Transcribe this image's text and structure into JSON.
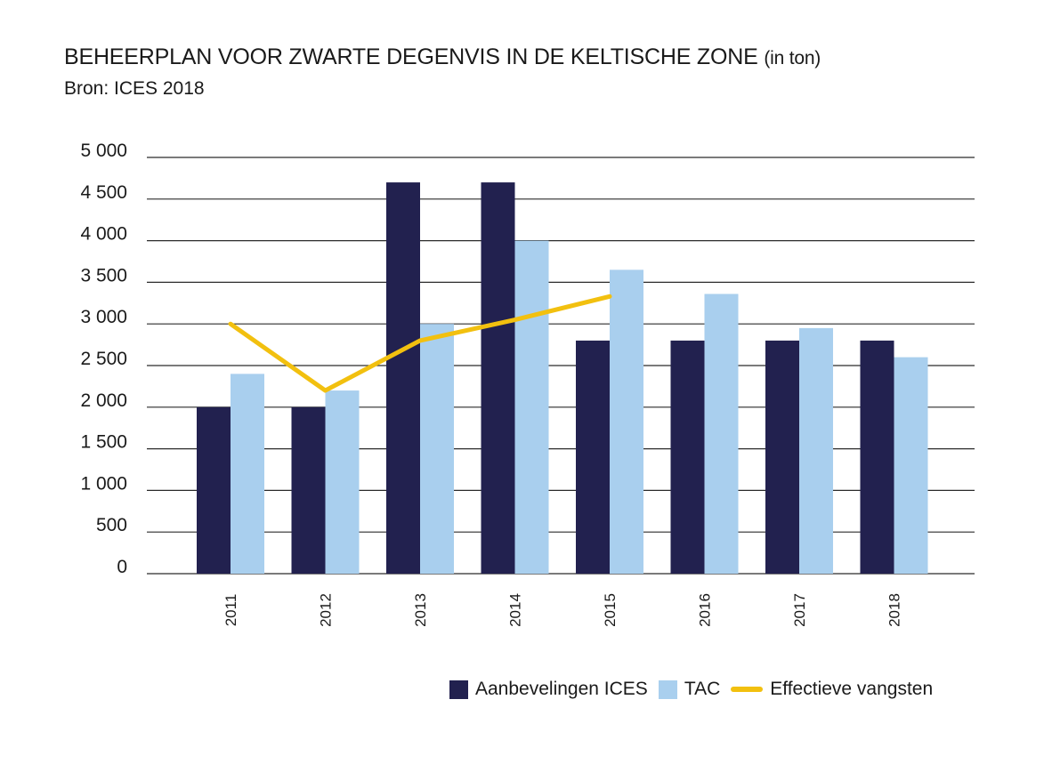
{
  "header": {
    "title": "BEHEERPLAN VOOR ZWARTE DEGENVIS IN DE KELTISCHE ZONE",
    "title_unit": "(in ton)",
    "source": "Bron: ICES 2018"
  },
  "chart_data": {
    "type": "bar",
    "title": "BEHEERPLAN VOOR ZWARTE DEGENVIS IN DE KELTISCHE ZONE (in ton)",
    "subtitle": "Bron: ICES 2018",
    "xlabel": "",
    "ylabel": "",
    "categories": [
      "2011",
      "2012",
      "2013",
      "2014",
      "2015",
      "2016",
      "2017",
      "2018"
    ],
    "ylim": [
      0,
      5000
    ],
    "yticks": [
      0,
      500,
      1000,
      1500,
      2000,
      2500,
      3000,
      3500,
      4000,
      4500,
      5000
    ],
    "ytick_labels": [
      "0",
      "500",
      "1 000",
      "1 500",
      "2 000",
      "2 500",
      "3 000",
      "3 500",
      "4 000",
      "4 500",
      "5 000"
    ],
    "grid": "horizontal",
    "legend_position": "bottom-right",
    "series": [
      {
        "name": "Aanbevelingen ICES",
        "type": "bar",
        "color": "#22214f",
        "values": [
          2000,
          2000,
          4700,
          4700,
          2800,
          2800,
          2800,
          2800
        ]
      },
      {
        "name": "TAC",
        "type": "bar",
        "color": "#a9cfee",
        "values": [
          2400,
          2200,
          3000,
          4000,
          3650,
          3360,
          2950,
          2600
        ]
      },
      {
        "name": "Effectieve vangsten",
        "type": "line",
        "color": "#f2c00f",
        "values": [
          3000,
          2200,
          2800,
          3050,
          3330,
          null,
          null,
          null
        ]
      }
    ]
  }
}
